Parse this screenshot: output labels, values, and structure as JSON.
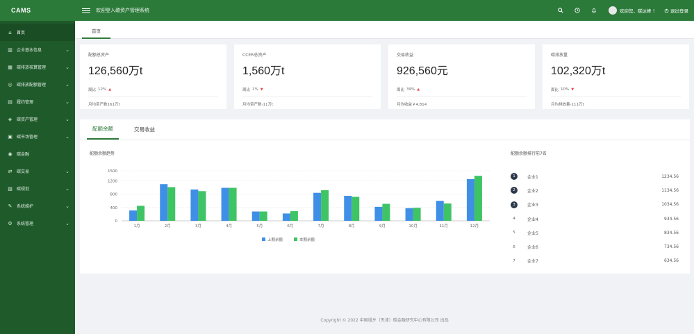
{
  "app": {
    "brand": "CAMS",
    "system_title": "欢迎登入碳资产管理系统"
  },
  "topbar": {
    "icons": [
      "search-icon",
      "clock-icon",
      "bell-icon"
    ],
    "user_text": "欢迎您，碳达峰 ！",
    "logout_label": "退出登录"
  },
  "sidebar": {
    "items": [
      {
        "label": "首页",
        "icon": "home-icon",
        "has_arrow": false,
        "active": true
      },
      {
        "label": "企业基本信息",
        "icon": "building-icon",
        "has_arrow": true
      },
      {
        "label": "碳排放核算管理",
        "icon": "calc-icon",
        "has_arrow": true
      },
      {
        "label": "碳排放配额管理",
        "icon": "quota-icon",
        "has_arrow": true
      },
      {
        "label": "履约管理",
        "icon": "contract-icon",
        "has_arrow": true
      },
      {
        "label": "碳资产管理",
        "icon": "asset-icon",
        "has_arrow": true
      },
      {
        "label": "碳市场管理",
        "icon": "market-icon",
        "has_arrow": true
      },
      {
        "label": "碳金融",
        "icon": "finance-icon",
        "has_arrow": false
      },
      {
        "label": "碳交易",
        "icon": "trade-icon",
        "has_arrow": true
      },
      {
        "label": "碳规划",
        "icon": "plan-icon",
        "has_arrow": true
      },
      {
        "label": "系统维护",
        "icon": "maintain-icon",
        "has_arrow": true
      },
      {
        "label": "系统管理",
        "icon": "settings-icon",
        "has_arrow": true
      }
    ]
  },
  "tabs": {
    "home": "首页"
  },
  "cards": [
    {
      "label": "配额总资产",
      "value": "126,560万t",
      "trend_label": "周比",
      "trend_value": "12%",
      "trend_dir": "up",
      "footer": "月均资产数161万t"
    },
    {
      "label": "CCER总资产",
      "value": "1,560万t",
      "trend_label": "周比",
      "trend_value": "1%",
      "trend_dir": "down",
      "footer": "月均资产数-11万t"
    },
    {
      "label": "交易收益",
      "value": "926,560元",
      "trend_label": "周比",
      "trend_value": "39%",
      "trend_dir": "up",
      "footer": "月均收益￥4,814"
    },
    {
      "label": "碳排放量",
      "value": "102,320万t",
      "trend_label": "周比",
      "trend_value": "10%",
      "trend_dir": "down",
      "footer": "月均排放量-111万t"
    }
  ],
  "panel": {
    "tabs": [
      "配额余额",
      "交易收益"
    ],
    "chart_title": "配额余额趋势",
    "rank_title": "配额余额排行前7名",
    "ranking": [
      {
        "rank": "1",
        "name": "企业1",
        "value": "1234.56"
      },
      {
        "rank": "2",
        "name": "企业2",
        "value": "1134.56"
      },
      {
        "rank": "3",
        "name": "企业3",
        "value": "1034.56"
      },
      {
        "rank": "4",
        "name": "企业4",
        "value": "934.56"
      },
      {
        "rank": "5",
        "name": "企业5",
        "value": "834.56"
      },
      {
        "rank": "6",
        "name": "企业6",
        "value": "734.56"
      },
      {
        "rank": "7",
        "name": "企业7",
        "value": "634.56"
      }
    ]
  },
  "chart_data": {
    "type": "bar",
    "categories": [
      "1月",
      "2月",
      "3月",
      "4月",
      "5月",
      "6月",
      "7月",
      "8月",
      "9月",
      "10月",
      "11月",
      "12月"
    ],
    "series": [
      {
        "name": "上期余额",
        "color": "#3f8fe6",
        "values": [
          310,
          1100,
          940,
          990,
          280,
          220,
          840,
          750,
          420,
          380,
          600,
          1250
        ]
      },
      {
        "name": "本期余额",
        "color": "#3ec465",
        "values": [
          450,
          1010,
          890,
          990,
          280,
          290,
          920,
          720,
          510,
          390,
          520,
          1350
        ]
      }
    ],
    "y_ticks": [
      0,
      400,
      800,
      1200,
      1500
    ],
    "ylim": [
      0,
      1500
    ],
    "legend_position": "bottom",
    "grid": true
  },
  "footer": {
    "text": "Copyright © 2022 中国城乡（天津）碳金融研究中心有限公司 出品"
  }
}
